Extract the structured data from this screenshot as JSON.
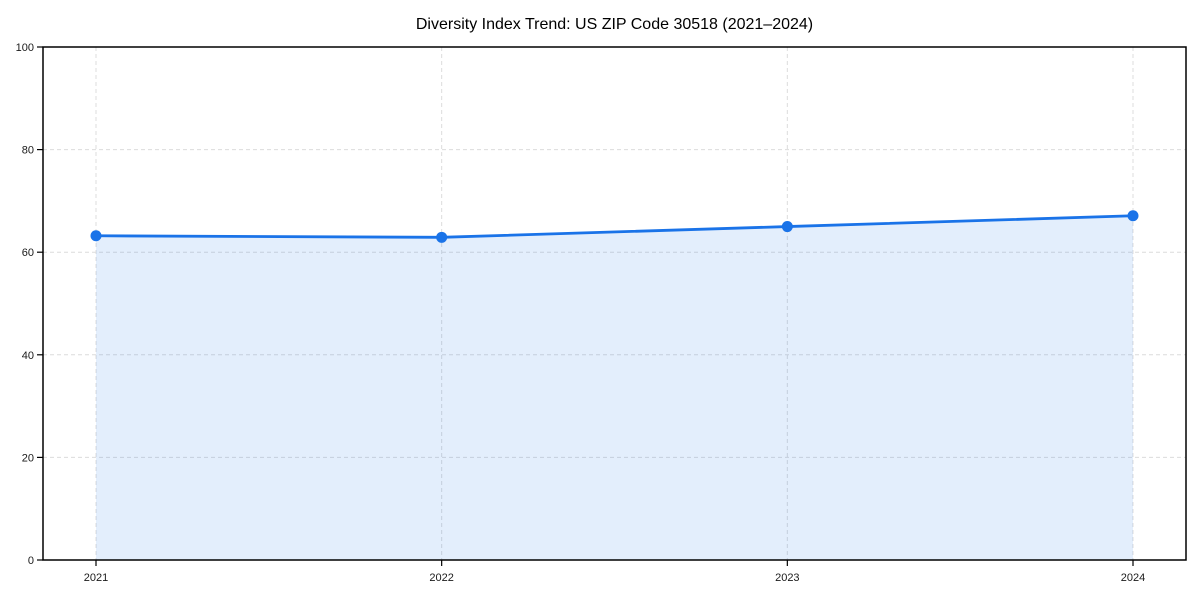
{
  "chart_data": {
    "type": "line",
    "title": "Diversity Index Trend: US ZIP Code 30518 (2021–2024)",
    "x": [
      "2021",
      "2022",
      "2023",
      "2024"
    ],
    "series": [
      {
        "name": "Diversity Index",
        "values": [
          63.2,
          62.9,
          65.0,
          67.1
        ]
      }
    ],
    "xlabel": "",
    "ylabel": "",
    "ylim": [
      0,
      100
    ],
    "yticks": [
      0,
      20,
      40,
      60,
      80,
      100
    ],
    "grid": "dashed-both-axes",
    "legend": "none",
    "area_fill_to_zero": true,
    "marker": "circle",
    "colors": {
      "line": "#1a73e8",
      "marker": "#1a73e8",
      "fill": "rgba(26,115,232,0.12)",
      "grid": "#dcdcdc",
      "axis": "#000000",
      "tick_text": "#1a1a1a",
      "background": "#ffffff"
    }
  }
}
